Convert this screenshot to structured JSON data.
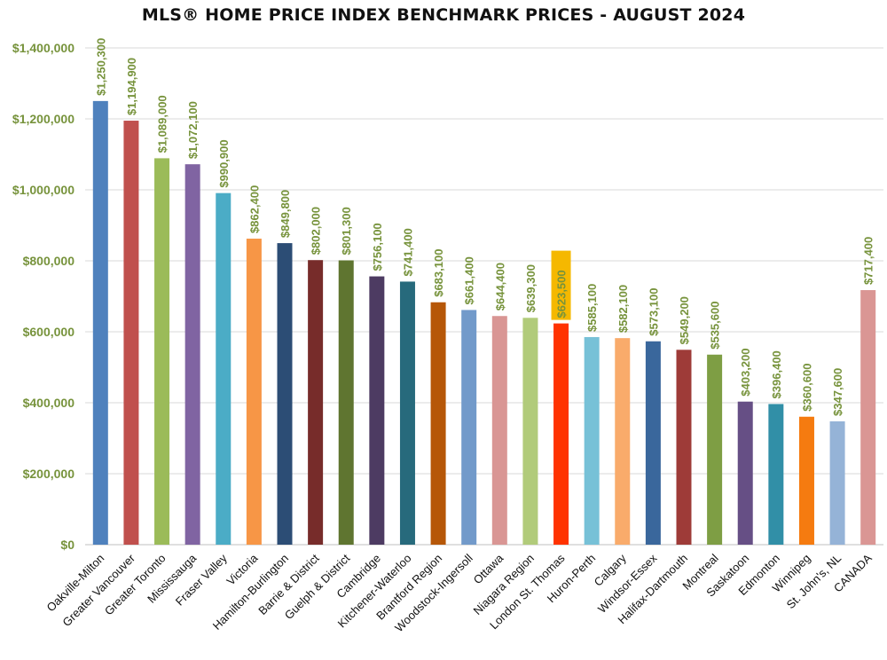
{
  "chart_data": {
    "type": "bar",
    "title": "MLS® HOME PRICE INDEX BENCHMARK PRICES - AUGUST 2024",
    "xlabel": "",
    "ylabel": "",
    "ylim": [
      0,
      1400000
    ],
    "yticks": [
      0,
      200000,
      400000,
      600000,
      800000,
      1000000,
      1200000,
      1400000
    ],
    "ytick_labels": [
      "$0",
      "$200,000",
      "$400,000",
      "$600,000",
      "$800,000",
      "$1,000,000",
      "$1,200,000",
      "$1,400,000"
    ],
    "grid": true,
    "legend": "none",
    "label_color": "#77933C",
    "highlight_color": "#F5B800",
    "categories": [
      "Oakville-Milton",
      "Greater Vancouver",
      "Greater Toronto",
      "Mississauga",
      "Fraser Valley",
      "Victoria",
      "Hamilton-Burlington",
      "Barrie & District",
      "Guelph & District",
      "Cambridge",
      "Kitchener-Waterloo",
      "Brantford Region",
      "Woodstock-Ingersoll",
      "Ottawa",
      "Niagara Region",
      "London St. Thomas",
      "Huron-Perth",
      "Calgary",
      "Windsor-Essex",
      "Halifax-Dartmouth",
      "Montreal",
      "Saskatoon",
      "Edmonton",
      "Winnipeg",
      "St. John's, NL",
      "CANADA"
    ],
    "values": [
      1250300,
      1194900,
      1089000,
      1072100,
      990900,
      862400,
      849800,
      802000,
      801300,
      756100,
      741400,
      683100,
      661400,
      644400,
      639300,
      623500,
      585100,
      582100,
      573100,
      549200,
      535600,
      403200,
      396400,
      360600,
      347600,
      717400
    ],
    "value_labels": [
      "$1,250,300",
      "$1,194,900",
      "$1,089,000",
      "$1,072,100",
      "$990,900",
      "$862,400",
      "$849,800",
      "$802,000",
      "$801,300",
      "$756,100",
      "$741,400",
      "$683,100",
      "$661,400",
      "$644,400",
      "$639,300",
      "$623,500",
      "$585,100",
      "$582,100",
      "$573,100",
      "$549,200",
      "$535,600",
      "$403,200",
      "$396,400",
      "$360,600",
      "$347,600",
      "$717,400"
    ],
    "colors": [
      "#4F81BD",
      "#C0504D",
      "#9BBB59",
      "#8064A2",
      "#4BACC6",
      "#F79646",
      "#2C4D75",
      "#772C2A",
      "#5F7530",
      "#4D3B62",
      "#276A7C",
      "#B65708",
      "#729ACA",
      "#D99694",
      "#B1CB7A",
      "#FF3300",
      "#77C1D7",
      "#F9AB6B",
      "#3A679C",
      "#9E3B38",
      "#7E9E44",
      "#664F85",
      "#318FA7",
      "#F57B10",
      "#95B3D7",
      "#DA9694"
    ],
    "highlight_index": 15
  }
}
